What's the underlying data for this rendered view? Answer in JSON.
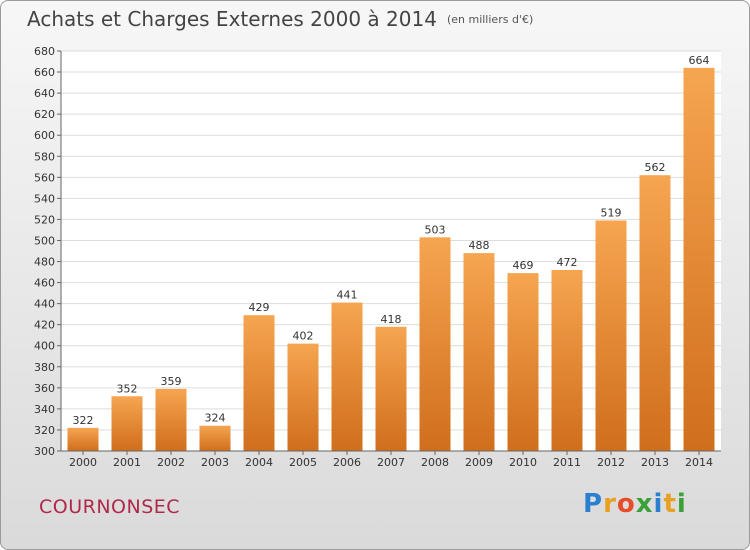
{
  "header": {
    "title": "Achats et Charges Externes 2000 à 2014",
    "unit": "(en milliers d'€)"
  },
  "footer": {
    "commune": "COURNONSEC",
    "logo_letters": [
      {
        "ch": "P",
        "color": "#2a7fd0"
      },
      {
        "ch": "r",
        "color": "#e8a020"
      },
      {
        "ch": "o",
        "color": "#e84a2a"
      },
      {
        "ch": "x",
        "color": "#3aa13a"
      },
      {
        "ch": "i",
        "color": "#2a7fd0"
      },
      {
        "ch": "t",
        "color": "#e8a020"
      },
      {
        "ch": "i",
        "color": "#3aa13a"
      }
    ]
  },
  "chart_data": {
    "type": "bar",
    "categories": [
      "2000",
      "2001",
      "2002",
      "2003",
      "2004",
      "2005",
      "2006",
      "2007",
      "2008",
      "2009",
      "2010",
      "2011",
      "2012",
      "2013",
      "2014"
    ],
    "values": [
      322,
      352,
      359,
      324,
      429,
      402,
      441,
      418,
      503,
      488,
      469,
      472,
      519,
      562,
      664
    ],
    "ylim": [
      300,
      680
    ],
    "ytick_step": 20,
    "grid": true,
    "bar_color": "#f0923a"
  }
}
